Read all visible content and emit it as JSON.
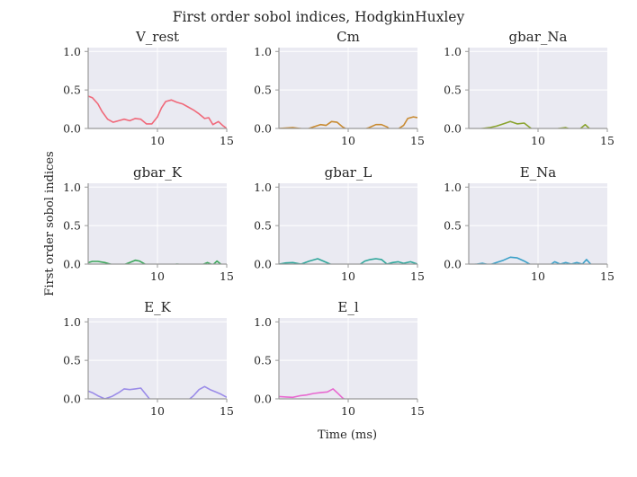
{
  "chart_data": {
    "type": "line",
    "title": "First order sobol indices, HodgkinHuxley",
    "xlabel": "Time (ms)",
    "ylabel": "First order sobol indices",
    "xlim": [
      5,
      15
    ],
    "ylim": [
      0,
      1.05
    ],
    "xticks": [
      "10",
      "15"
    ],
    "yticks": [
      "0.0",
      "0.5",
      "1.0"
    ],
    "grid": true,
    "subplots": [
      {
        "name": "V_rest",
        "color": "#f0697a",
        "x": [
          5,
          5.3,
          5.7,
          6.0,
          6.4,
          6.8,
          7.2,
          7.6,
          8.0,
          8.4,
          8.8,
          9.2,
          9.6,
          10.0,
          10.3,
          10.6,
          11.0,
          11.4,
          11.8,
          12.2,
          12.6,
          13.0,
          13.4,
          13.7,
          14.0,
          14.4,
          14.7,
          15.0
        ],
        "y": [
          0.42,
          0.4,
          0.32,
          0.22,
          0.12,
          0.08,
          0.1,
          0.12,
          0.1,
          0.13,
          0.12,
          0.06,
          0.06,
          0.15,
          0.27,
          0.35,
          0.37,
          0.34,
          0.32,
          0.28,
          0.24,
          0.19,
          0.13,
          0.14,
          0.05,
          0.09,
          0.04,
          0.0
        ]
      },
      {
        "name": "Cm",
        "color": "#c88a30",
        "x": [
          5,
          5.5,
          6.0,
          6.5,
          7.0,
          7.5,
          8.0,
          8.4,
          8.8,
          9.2,
          9.6,
          10.0,
          10.5,
          11.0,
          11.5,
          12.0,
          12.4,
          12.8,
          13.0,
          13.5,
          14.0,
          14.3,
          14.7,
          15.0
        ],
        "y": [
          0.0,
          0.005,
          0.01,
          0.0,
          -0.01,
          0.02,
          0.05,
          0.04,
          0.09,
          0.08,
          0.02,
          -0.02,
          -0.03,
          -0.02,
          0.01,
          0.05,
          0.05,
          0.02,
          -0.01,
          -0.02,
          0.04,
          0.13,
          0.15,
          0.14
        ]
      },
      {
        "name": "gbar_Na",
        "color": "#8aa32e",
        "x": [
          5,
          5.5,
          6.0,
          6.5,
          7.0,
          7.5,
          8.0,
          8.5,
          9.0,
          9.5,
          10.0,
          11.0,
          11.5,
          12.0,
          12.5,
          13.0,
          13.4,
          13.7,
          14.0
        ],
        "y": [
          -0.02,
          -0.01,
          0.0,
          0.01,
          0.03,
          0.06,
          0.09,
          0.06,
          0.07,
          0.0,
          -0.05,
          -0.02,
          0.0,
          0.01,
          -0.02,
          -0.01,
          0.05,
          0.0,
          -0.04
        ]
      },
      {
        "name": "gbar_K",
        "color": "#3ba65a",
        "x": [
          5,
          5.3,
          5.7,
          6.2,
          6.8,
          7.4,
          8.0,
          8.4,
          8.7,
          9.2,
          10.0,
          10.8,
          11.4,
          12.0,
          12.6,
          13.2,
          13.6,
          14.0,
          14.3,
          14.7
        ],
        "y": [
          0.02,
          0.035,
          0.035,
          0.02,
          -0.01,
          -0.02,
          0.02,
          0.05,
          0.04,
          -0.01,
          -0.03,
          -0.02,
          0.0,
          -0.01,
          -0.03,
          -0.01,
          0.02,
          -0.01,
          0.04,
          -0.02
        ]
      },
      {
        "name": "gbar_L",
        "color": "#2fa69a",
        "x": [
          5,
          5.5,
          6.0,
          6.6,
          7.2,
          7.8,
          8.2,
          8.7,
          9.2,
          10.0,
          10.8,
          11.2,
          11.6,
          12.0,
          12.4,
          12.8,
          13.2,
          13.6,
          14.0,
          14.5,
          15.0
        ],
        "y": [
          0.0,
          0.015,
          0.02,
          0.0,
          0.04,
          0.07,
          0.04,
          0.0,
          -0.02,
          -0.03,
          -0.01,
          0.04,
          0.06,
          0.07,
          0.06,
          0.0,
          0.02,
          0.03,
          0.01,
          0.03,
          0.0
        ]
      },
      {
        "name": "E_Na",
        "color": "#3aa0c8",
        "x": [
          5,
          5.6,
          6.0,
          6.5,
          7.0,
          7.5,
          8.0,
          8.5,
          9.0,
          9.5,
          10.0,
          10.8,
          11.2,
          11.6,
          12.0,
          12.4,
          12.8,
          13.2,
          13.5,
          13.8,
          14.2
        ],
        "y": [
          -0.01,
          0.0,
          0.01,
          -0.01,
          0.02,
          0.05,
          0.09,
          0.08,
          0.04,
          -0.01,
          -0.04,
          -0.02,
          0.03,
          0.0,
          0.02,
          0.0,
          0.02,
          0.0,
          0.06,
          0.0,
          -0.03
        ]
      },
      {
        "name": "E_K",
        "color": "#9b8ce8",
        "x": [
          5,
          5.3,
          5.7,
          6.2,
          6.7,
          7.2,
          7.6,
          8.0,
          8.4,
          8.8,
          9.2,
          9.6,
          10.5,
          11.5,
          12.2,
          12.6,
          13.0,
          13.4,
          13.8,
          14.2,
          14.6,
          15.0
        ],
        "y": [
          0.1,
          0.08,
          0.04,
          0.0,
          0.03,
          0.08,
          0.13,
          0.12,
          0.13,
          0.14,
          0.05,
          -0.04,
          -0.06,
          -0.05,
          -0.02,
          0.04,
          0.12,
          0.16,
          0.12,
          0.09,
          0.06,
          0.02
        ]
      },
      {
        "name": "E_l",
        "color": "#e86ad0",
        "x": [
          5,
          5.5,
          6.0,
          6.5,
          7.0,
          7.5,
          8.0,
          8.5,
          8.9,
          9.2,
          9.6,
          10.0
        ],
        "y": [
          0.03,
          0.025,
          0.02,
          0.04,
          0.05,
          0.07,
          0.08,
          0.09,
          0.13,
          0.08,
          0.01,
          -0.03
        ]
      }
    ]
  }
}
